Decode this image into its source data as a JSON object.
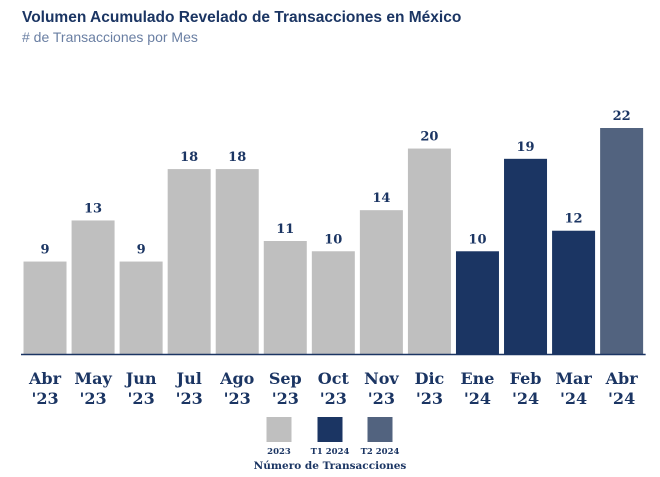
{
  "chart_data": {
    "type": "bar",
    "title": "Volumen Acumulado Revelado de Transacciones en México",
    "subtitle": "# de Transacciones por Mes",
    "categories": [
      [
        "Abr",
        "'23"
      ],
      [
        "May",
        "'23"
      ],
      [
        "Jun",
        "'23"
      ],
      [
        "Jul",
        "'23"
      ],
      [
        "Ago",
        "'23"
      ],
      [
        "Sep",
        "'23"
      ],
      [
        "Oct",
        "'23"
      ],
      [
        "Nov",
        "'23"
      ],
      [
        "Dic",
        "'23"
      ],
      [
        "Ene",
        "'24"
      ],
      [
        "Feb",
        "'24"
      ],
      [
        "Mar",
        "'24"
      ],
      [
        "Abr",
        "'24"
      ]
    ],
    "values": [
      9,
      13,
      9,
      18,
      18,
      11,
      10,
      14,
      20,
      10,
      19,
      12,
      22
    ],
    "groups": [
      "2023",
      "2023",
      "2023",
      "2023",
      "2023",
      "2023",
      "2023",
      "2023",
      "2023",
      "T1 2024",
      "T1 2024",
      "T1 2024",
      "T2 2024"
    ],
    "ylim": [
      0,
      22
    ],
    "grid": false,
    "legend": {
      "placement": "bottom-center",
      "title": "Número de Transacciones",
      "entries": [
        {
          "name": "2023",
          "color": "#bfbfbf"
        },
        {
          "name": "T1 2024",
          "color": "#1b3563"
        },
        {
          "name": "T2 2024",
          "color": "#52637f"
        }
      ]
    },
    "colors": {
      "label": "#1b3563",
      "baseline": "#1b3563"
    }
  }
}
